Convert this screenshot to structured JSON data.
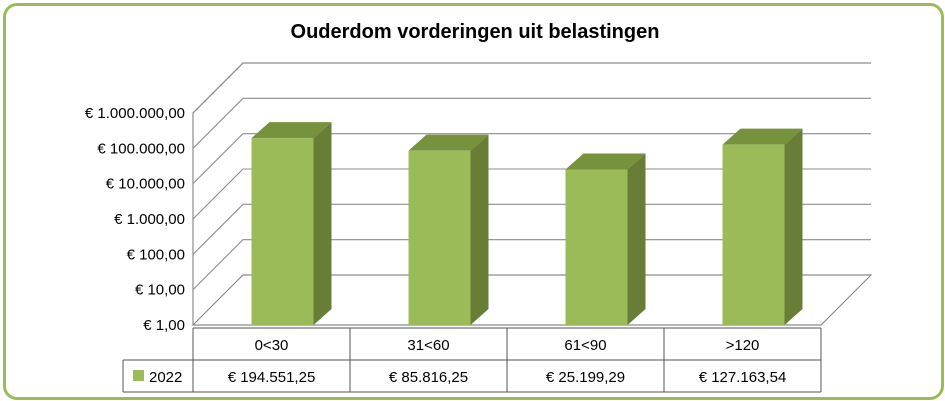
{
  "chart_data": {
    "type": "bar",
    "title": "Ouderdom vorderingen uit belastingen",
    "categories": [
      "0<30",
      "31<60",
      "61<90",
      ">120"
    ],
    "series": [
      {
        "name": "2022",
        "values": [
          194551.25,
          85816.25,
          25199.29,
          127163.54
        ],
        "value_labels": [
          "€ 194.551,25",
          "€ 85.816,25",
          "€ 25.199,29",
          "€ 127.163,54"
        ]
      }
    ],
    "y_scale": "log",
    "ylim": [
      1,
      1000000
    ],
    "y_ticks": [
      1,
      10,
      100,
      1000,
      10000,
      100000,
      1000000
    ],
    "y_tick_labels": [
      "€ 1,00",
      "€ 10,00",
      "€ 100,00",
      "€ 1.000,00",
      "€ 10.000,00",
      "€ 100.000,00",
      "€ 1.000.000,00"
    ],
    "grid": true,
    "legend": "data-table",
    "colors": {
      "bar_front": "#9bbb59",
      "bar_side": "#687e37",
      "bar_top": "#76923c",
      "frame": "#9bbb59",
      "grid": "#8c8c8c"
    }
  }
}
